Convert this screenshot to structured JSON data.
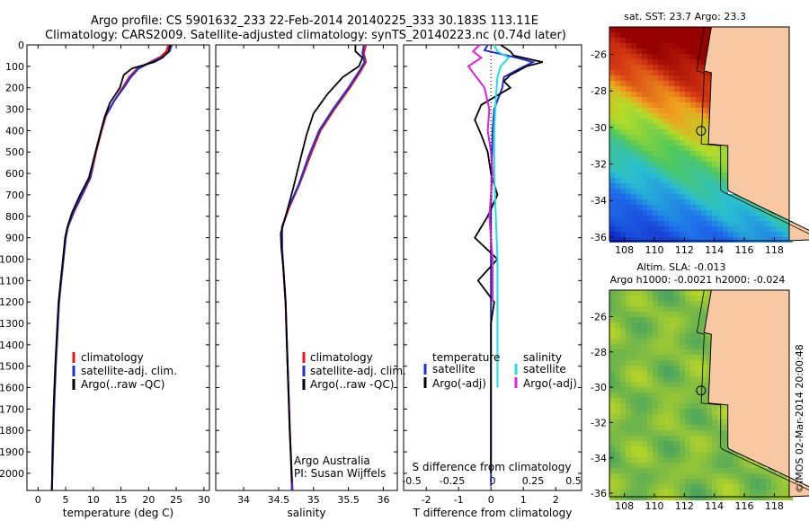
{
  "header": {
    "line1": "Argo profile: CS 5901632_233 22-Feb-2014 20140225_333 30.183S 113.11E",
    "line2": "Climatology: CARS2009. Satellite-adjusted climatology: synTS_20140223.nc (0.74d later)"
  },
  "colors": {
    "climatology": "#e8141c",
    "satellite": "#1f2fd6",
    "argo": "#000000",
    "sal_satellite": "#22dde8",
    "sal_argo": "#e020e0",
    "land": "#f7c8a2"
  },
  "chart_data": [
    {
      "type": "line",
      "name": "temperature",
      "xlabel": "temperature (deg C)",
      "ylabel": "",
      "xlim": [
        -2,
        31
      ],
      "ylim": [
        2080,
        0
      ],
      "xticks": [
        "0",
        "5",
        "10",
        "15",
        "20",
        "25",
        "30"
      ],
      "yticks": [
        "0",
        "100",
        "200",
        "300",
        "400",
        "500",
        "600",
        "700",
        "800",
        "900",
        "1000",
        "1100",
        "1200",
        "1300",
        "1400",
        "1500",
        "1600",
        "1700",
        "1800",
        "1900",
        "2000"
      ],
      "legend": {
        "placement": "lower-right",
        "entries": [
          "climatology",
          "satellite-adj. clim.",
          "Argo(..raw -QC)"
        ]
      },
      "series": [
        {
          "name": "climatology",
          "points": [
            [
              23.6,
              0
            ],
            [
              23.2,
              30
            ],
            [
              22.2,
              55
            ],
            [
              20.3,
              80
            ],
            [
              18.0,
              110
            ],
            [
              16.5,
              150
            ],
            [
              15.3,
              200
            ],
            [
              13.8,
              260
            ],
            [
              12.3,
              330
            ],
            [
              11.5,
              400
            ],
            [
              10.5,
              500
            ],
            [
              9.5,
              620
            ],
            [
              8.0,
              700
            ],
            [
              6.5,
              780
            ],
            [
              5.4,
              850
            ],
            [
              5.0,
              900
            ],
            [
              4.6,
              1000
            ],
            [
              4.2,
              1100
            ],
            [
              3.8,
              1200
            ],
            [
              3.5,
              1350
            ],
            [
              3.2,
              1500
            ],
            [
              2.9,
              1700
            ],
            [
              2.7,
              1900
            ],
            [
              2.5,
              2080
            ]
          ]
        },
        {
          "name": "satellite-adj. clim.",
          "points": [
            [
              24.2,
              0
            ],
            [
              23.8,
              30
            ],
            [
              22.6,
              55
            ],
            [
              20.5,
              80
            ],
            [
              18.2,
              110
            ],
            [
              16.8,
              150
            ],
            [
              15.5,
              200
            ],
            [
              13.8,
              260
            ],
            [
              12.2,
              330
            ],
            [
              11.4,
              400
            ],
            [
              10.4,
              500
            ],
            [
              9.4,
              620
            ],
            [
              7.9,
              700
            ],
            [
              6.4,
              780
            ],
            [
              5.4,
              850
            ],
            [
              5.0,
              900
            ],
            [
              4.6,
              1000
            ],
            [
              4.2,
              1100
            ],
            [
              3.8,
              1200
            ],
            [
              3.5,
              1350
            ],
            [
              3.2,
              1500
            ],
            [
              2.9,
              1700
            ],
            [
              2.7,
              1900
            ],
            [
              2.5,
              2080
            ]
          ]
        },
        {
          "name": "Argo(..raw -QC)",
          "points": [
            [
              23.9,
              0
            ],
            [
              23.6,
              30
            ],
            [
              22.5,
              60
            ],
            [
              21.0,
              80
            ],
            [
              17.0,
              110
            ],
            [
              15.5,
              140
            ],
            [
              14.8,
              200
            ],
            [
              13.0,
              270
            ],
            [
              12.0,
              340
            ],
            [
              11.2,
              420
            ],
            [
              10.2,
              520
            ],
            [
              9.2,
              620
            ],
            [
              7.6,
              700
            ],
            [
              6.2,
              780
            ],
            [
              5.3,
              850
            ],
            [
              4.9,
              900
            ],
            [
              4.5,
              1000
            ],
            [
              4.1,
              1100
            ],
            [
              3.7,
              1200
            ],
            [
              3.4,
              1350
            ],
            [
              3.1,
              1500
            ],
            [
              2.8,
              1700
            ],
            [
              2.6,
              1900
            ],
            [
              2.5,
              2080
            ]
          ]
        }
      ]
    },
    {
      "type": "line",
      "name": "salinity",
      "xlabel": "salinity",
      "xlim": [
        33.6,
        36.2
      ],
      "ylim": [
        2080,
        0
      ],
      "xticks": [
        "34",
        "34.5",
        "35",
        "35.5",
        "36"
      ],
      "legend": {
        "placement": "lower-right",
        "entries": [
          "climatology",
          "satellite-adj. clim.",
          "Argo(..raw -QC)"
        ]
      },
      "annotation": [
        "Argo Australia",
        "PI: Susan Wijffels"
      ],
      "series": [
        {
          "name": "climatology",
          "points": [
            [
              35.75,
              0
            ],
            [
              35.72,
              40
            ],
            [
              35.75,
              80
            ],
            [
              35.68,
              120
            ],
            [
              35.52,
              200
            ],
            [
              35.3,
              300
            ],
            [
              35.1,
              400
            ],
            [
              34.95,
              520
            ],
            [
              34.8,
              650
            ],
            [
              34.65,
              760
            ],
            [
              34.55,
              850
            ],
            [
              34.55,
              950
            ],
            [
              34.56,
              1000
            ],
            [
              34.58,
              1100
            ],
            [
              34.6,
              1200
            ],
            [
              34.62,
              1400
            ],
            [
              34.64,
              1600
            ],
            [
              34.66,
              1800
            ],
            [
              34.68,
              1950
            ],
            [
              34.7,
              2080
            ]
          ]
        },
        {
          "name": "satellite-adj. clim.",
          "points": [
            [
              35.72,
              0
            ],
            [
              35.7,
              40
            ],
            [
              35.73,
              80
            ],
            [
              35.66,
              120
            ],
            [
              35.5,
              200
            ],
            [
              35.28,
              300
            ],
            [
              35.08,
              400
            ],
            [
              34.93,
              520
            ],
            [
              34.79,
              650
            ],
            [
              34.64,
              760
            ],
            [
              34.55,
              850
            ],
            [
              34.55,
              950
            ],
            [
              34.56,
              1000
            ],
            [
              34.58,
              1100
            ],
            [
              34.6,
              1200
            ],
            [
              34.62,
              1400
            ],
            [
              34.64,
              1600
            ],
            [
              34.66,
              1800
            ],
            [
              34.68,
              1950
            ],
            [
              34.69,
              2080
            ]
          ]
        },
        {
          "name": "Argo(..raw -QC)",
          "points": [
            [
              35.6,
              0
            ],
            [
              35.6,
              30
            ],
            [
              35.7,
              60
            ],
            [
              35.65,
              100
            ],
            [
              35.42,
              150
            ],
            [
              35.2,
              230
            ],
            [
              35.0,
              320
            ],
            [
              34.9,
              420
            ],
            [
              34.8,
              550
            ],
            [
              34.7,
              680
            ],
            [
              34.6,
              800
            ],
            [
              34.53,
              880
            ],
            [
              34.54,
              950
            ],
            [
              34.57,
              1050
            ],
            [
              34.6,
              1200
            ],
            [
              34.62,
              1400
            ],
            [
              34.64,
              1600
            ],
            [
              34.66,
              1800
            ],
            [
              34.68,
              1950
            ],
            [
              34.69,
              2040
            ]
          ]
        }
      ]
    },
    {
      "type": "line",
      "name": "difference",
      "xlabel": "T difference from climatology",
      "xlabel2": "S difference from climatology",
      "xlim": [
        -2.7,
        2.8
      ],
      "ylim": [
        2080,
        0
      ],
      "xticks": [
        "-2",
        "-1",
        "0",
        "1",
        "2"
      ],
      "xticks_s": [
        "-0.5",
        "-0.25",
        "0",
        "0.25",
        "0.5"
      ],
      "legend": {
        "placement": "lower",
        "col1": {
          "title": "temperature",
          "entries": [
            "satellite",
            "Argo(-adj)"
          ]
        },
        "col2": {
          "title": "salinity",
          "entries": [
            "satellite",
            "Argo(-adj)"
          ]
        }
      },
      "series": [
        {
          "name": "T satellite",
          "points": [
            [
              -0.1,
              0
            ],
            [
              -0.2,
              25
            ],
            [
              0.8,
              60
            ],
            [
              1.3,
              80
            ],
            [
              0.9,
              110
            ],
            [
              0.4,
              150
            ],
            [
              0.35,
              200
            ],
            [
              0.1,
              300
            ],
            [
              0.05,
              400
            ],
            [
              0.02,
              600
            ],
            [
              0,
              800
            ],
            [
              0,
              1000
            ],
            [
              0,
              1400
            ],
            [
              0,
              2060
            ]
          ]
        },
        {
          "name": "T Argo(-adj)",
          "points": [
            [
              0.3,
              0
            ],
            [
              0.6,
              30
            ],
            [
              0.7,
              50
            ],
            [
              1.6,
              80
            ],
            [
              1.1,
              100
            ],
            [
              0.6,
              140
            ],
            [
              0.4,
              170
            ],
            [
              0.6,
              200
            ],
            [
              -0.3,
              280
            ],
            [
              -0.5,
              350
            ],
            [
              -0.3,
              420
            ],
            [
              -0.1,
              500
            ],
            [
              0,
              600
            ],
            [
              0.2,
              700
            ],
            [
              -0.1,
              800
            ],
            [
              -0.5,
              900
            ],
            [
              0.2,
              1000
            ],
            [
              -0.4,
              1100
            ],
            [
              0.1,
              1200
            ],
            [
              0,
              1300
            ],
            [
              0,
              1400
            ],
            [
              0,
              1600
            ],
            [
              0,
              2000
            ]
          ]
        },
        {
          "name": "S satellite",
          "points": [
            [
              0.01,
              0
            ],
            [
              0.03,
              30
            ],
            [
              0.1,
              60
            ],
            [
              0.05,
              100
            ],
            [
              0.03,
              150
            ],
            [
              0.02,
              250
            ],
            [
              0.01,
              400
            ],
            [
              0.01,
              600
            ],
            [
              0.02,
              800
            ],
            [
              0.03,
              1000
            ],
            [
              0.03,
              1200
            ],
            [
              0.03,
              1400
            ],
            [
              0.03,
              1600
            ]
          ]
        },
        {
          "name": "S Argo(-adj)",
          "points": [
            [
              -0.08,
              0
            ],
            [
              -0.12,
              30
            ],
            [
              -0.07,
              60
            ],
            [
              -0.15,
              100
            ],
            [
              -0.1,
              150
            ],
            [
              -0.05,
              200
            ],
            [
              -0.02,
              300
            ],
            [
              -0.03,
              400
            ],
            [
              -0.01,
              500
            ],
            [
              0,
              600
            ],
            [
              -0.02,
              800
            ],
            [
              -0.01,
              900
            ],
            [
              0,
              1000
            ],
            [
              0,
              1200
            ]
          ]
        }
      ]
    }
  ],
  "maps": [
    {
      "title": "sat. SST: 23.7 Argo: 23.3",
      "type": "heatmap",
      "xticks": [
        "108",
        "110",
        "112",
        "114",
        "116",
        "118"
      ],
      "yticks": [
        "-26",
        "-28",
        "-30",
        "-32",
        "-34",
        "-36"
      ],
      "xlim": [
        107,
        119
      ],
      "ylim": [
        -36.2,
        -24.5
      ],
      "marker": [
        113.11,
        -30.183
      ]
    },
    {
      "title": "Altim. SLA: -0.013",
      "subtitle": "Argo h1000: -0.0021 h2000: -0.024",
      "type": "heatmap",
      "xticks": [
        "108",
        "110",
        "112",
        "114",
        "116",
        "118"
      ],
      "yticks": [
        "-26",
        "-28",
        "-30",
        "-32",
        "-34",
        "-36"
      ],
      "xlim": [
        107,
        119
      ],
      "ylim": [
        -36.2,
        -24.5
      ],
      "marker": [
        113.11,
        -30.183
      ]
    }
  ],
  "footer": {
    "stamp": "©IMOS 02-Mar-2014 20:00:48"
  }
}
